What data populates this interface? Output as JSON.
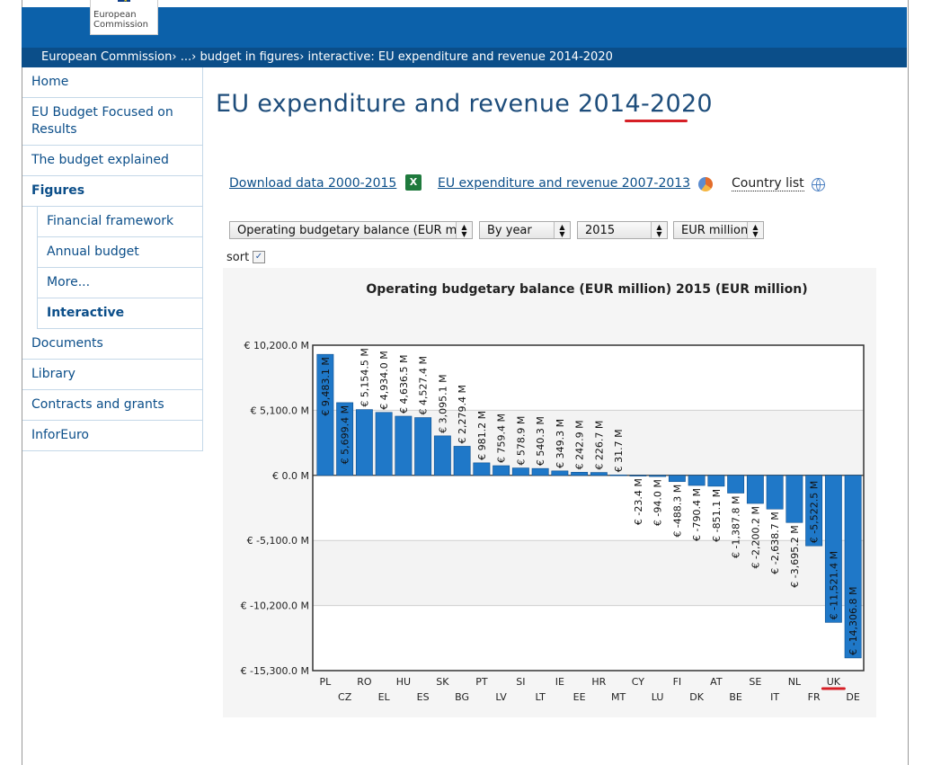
{
  "header": {
    "logo_line1": "European",
    "logo_line2": "Commission"
  },
  "breadcrumb": {
    "items": [
      "European Commission",
      "...",
      "budget in figures",
      "interactive: EU expenditure and revenue 2014-2020"
    ],
    "separator": "›"
  },
  "sidebar": {
    "items": [
      {
        "label": "Home"
      },
      {
        "label": "EU Budget Focused on Results"
      },
      {
        "label": "The budget explained"
      },
      {
        "label": "Figures"
      },
      {
        "label": "Financial framework"
      },
      {
        "label": "Annual budget"
      },
      {
        "label": "More..."
      },
      {
        "label": "Interactive"
      },
      {
        "label": "Documents"
      },
      {
        "label": "Library"
      },
      {
        "label": "Contracts and grants"
      },
      {
        "label": "InforEuro"
      }
    ]
  },
  "main": {
    "title": "EU expenditure and revenue 2014-2020",
    "links": {
      "download": "Download data 2000-2015",
      "previous": "EU expenditure and revenue 2007-2013",
      "country_list": "Country list"
    },
    "filters": {
      "measure": "Operating budgetary balance (EUR million)",
      "period": "By year",
      "year": "2015",
      "unit": "EUR million"
    },
    "sort_label": "sort"
  },
  "colors": {
    "brand_blue": "#0c61aa",
    "bar_fill": "#1f78c8",
    "annotation_red": "#d61f26"
  },
  "chart_data": {
    "type": "bar",
    "title": "Operating budgetary balance (EUR million) 2015 (EUR million)",
    "ylim": [
      -15300,
      10200
    ],
    "yticks": [
      10200,
      5100,
      0,
      -5100,
      -10200,
      -15300
    ],
    "ytick_labels": [
      "€ 10,200.0 M",
      "€ 5,100.0 M",
      "€ 0.0 M",
      "€ -5,100.0 M",
      "€ -10,200.0 M",
      "€ -15,300.0 M"
    ],
    "categories": [
      "PL",
      "CZ",
      "RO",
      "EL",
      "HU",
      "ES",
      "SK",
      "BG",
      "PT",
      "LV",
      "SI",
      "LT",
      "IE",
      "EE",
      "HR",
      "MT",
      "CY",
      "LU",
      "FI",
      "DK",
      "AT",
      "BE",
      "SE",
      "IT",
      "NL",
      "FR",
      "UK",
      "DE"
    ],
    "values": [
      9483.1,
      5699.4,
      5154.5,
      4934.0,
      4636.5,
      4527.4,
      3095.1,
      2279.4,
      981.2,
      759.4,
      578.9,
      540.3,
      349.3,
      242.9,
      226.7,
      31.7,
      -23.4,
      -94.0,
      -488.3,
      -790.4,
      -851.1,
      -1387.8,
      -2200.2,
      -2638.7,
      -3695.2,
      -5522.5,
      -11521.4,
      -14306.8
    ],
    "value_labels": [
      "€ 9,483.1 M",
      "€ 5,699.4 M",
      "€ 5,154.5 M",
      "€ 4,934.0 M",
      "€ 4,636.5 M",
      "€ 4,527.4 M",
      "€ 3,095.1 M",
      "€ 2,279.4 M",
      "€ 981.2 M",
      "€ 759.4 M",
      "€ 578.9 M",
      "€ 540.3 M",
      "€ 349.3 M",
      "€ 242.9 M",
      "€ 226.7 M",
      "€ 31.7 M",
      "€ -23.4 M",
      "€ -94.0 M",
      "€ -488.3 M",
      "€ -790.4 M",
      "€ -851.1 M",
      "€ -1,387.8 M",
      "€ -2,200.2 M",
      "€ -2,638.7 M",
      "€ -3,695.2 M",
      "€ -5,522.5 M",
      "€ -11,521.4 M",
      "€ -14,306.8 M"
    ],
    "highlighted_category": "UK"
  }
}
